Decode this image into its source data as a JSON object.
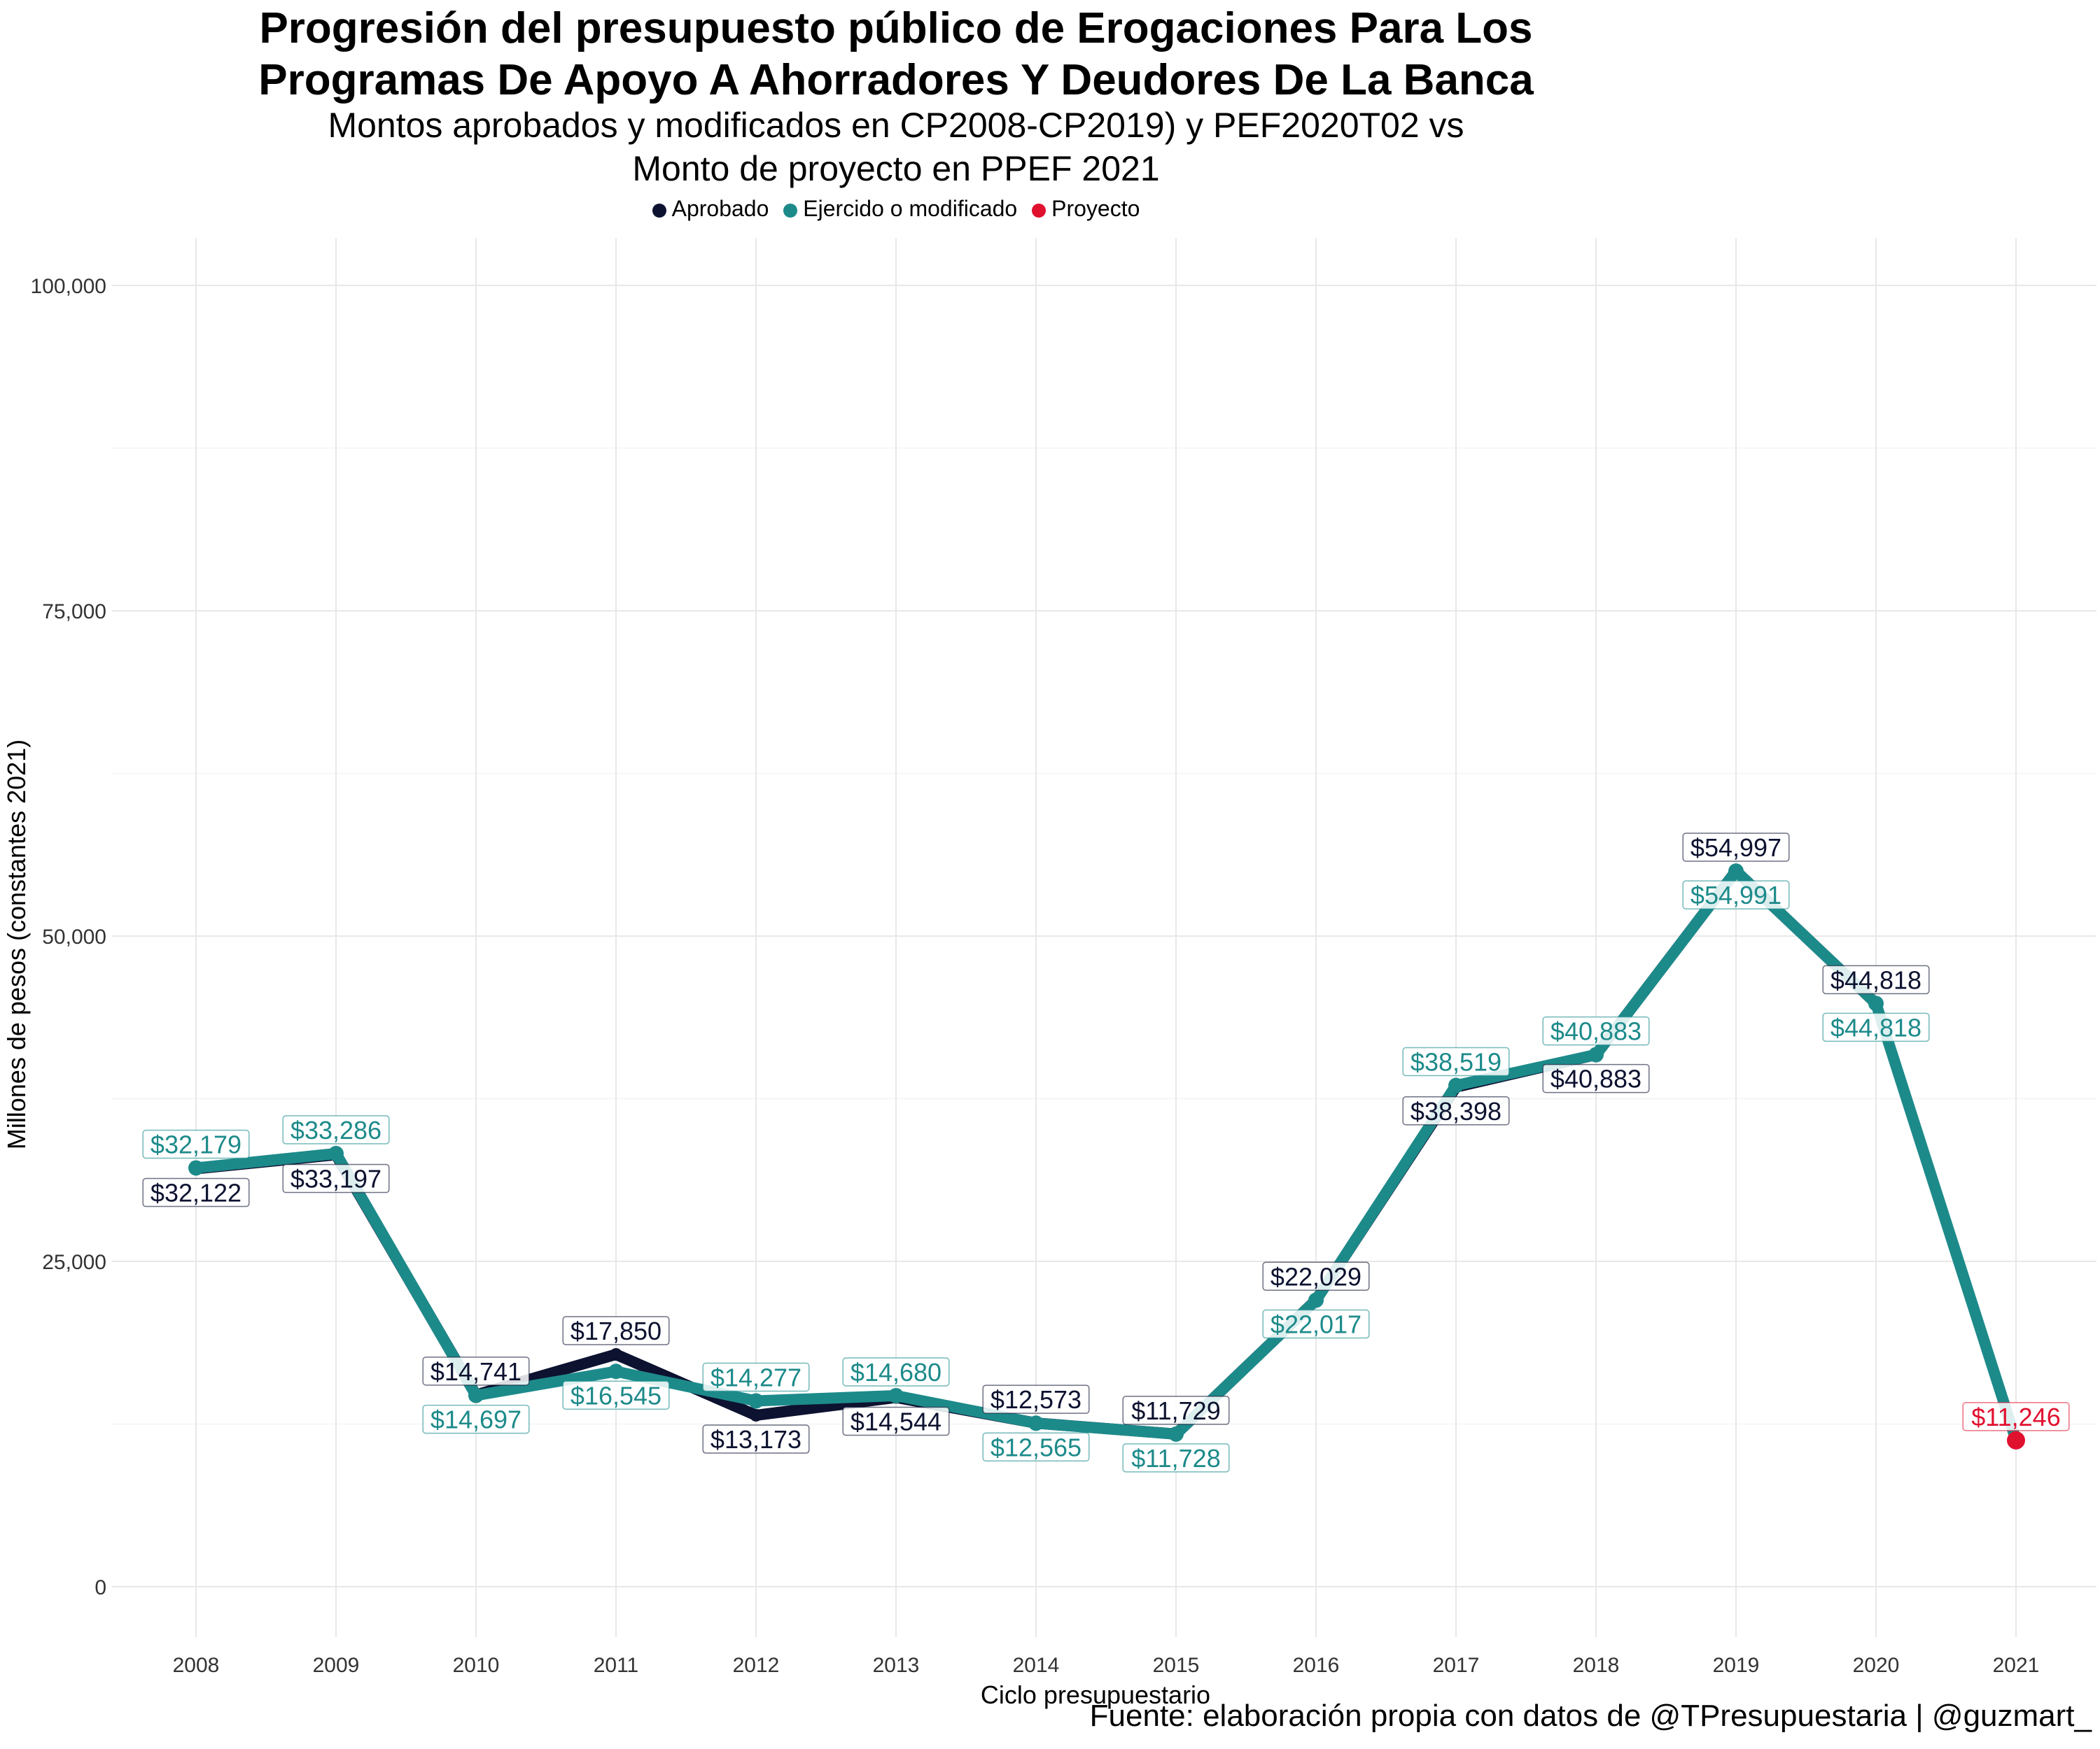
{
  "title_lines": [
    "Progresión del presupuesto público de Erogaciones Para Los",
    "Programas De Apoyo A Ahorradores Y Deudores De La Banca"
  ],
  "subtitle_lines": [
    "Montos aprobados y modificados en CP2008-CP2019) y PEF2020T02 vs",
    "Monto de proyecto en PPEF 2021"
  ],
  "caption": "Fuente: elaboración propia con datos de @TPresupuestaria | @guzmart_",
  "legend": [
    {
      "label": "Aprobado",
      "color": "#0d1230"
    },
    {
      "label": "Ejercido o modificado",
      "color": "#1d8a8a"
    },
    {
      "label": "Proyecto",
      "color": "#e0102f"
    }
  ],
  "chart_data": {
    "type": "line",
    "xlabel": "Ciclo presupuestario",
    "ylabel": "Millones de pesos (constantes 2021)",
    "x": [
      2008,
      2009,
      2010,
      2011,
      2012,
      2013,
      2014,
      2015,
      2016,
      2017,
      2018,
      2019,
      2020,
      2021
    ],
    "ylim": [
      0,
      100000
    ],
    "yticks": [
      0,
      25000,
      50000,
      75000,
      100000
    ],
    "ytick_labels": [
      "0",
      "25,000",
      "50,000",
      "75,000",
      "100,000"
    ],
    "grid": true,
    "series": [
      {
        "name": "Aprobado",
        "color": "#0d1230",
        "x": [
          2008,
          2009,
          2010,
          2011,
          2012,
          2013,
          2014,
          2015,
          2016,
          2017,
          2018,
          2019,
          2020
        ],
        "values": [
          32122,
          33197,
          14741,
          17850,
          13173,
          14544,
          12573,
          11729,
          22029,
          38398,
          40883,
          54997,
          44818
        ],
        "labels": [
          "$32,122",
          "$33,197",
          "$14,741",
          "$17,850",
          "$13,173",
          "$14,544",
          "$12,573",
          "$11,729",
          "$22,029",
          "$38,398",
          "$40,883",
          "$54,997",
          "$44,818"
        ]
      },
      {
        "name": "Ejercido o modificado",
        "color": "#1d8a8a",
        "x": [
          2008,
          2009,
          2010,
          2011,
          2012,
          2013,
          2014,
          2015,
          2016,
          2017,
          2018,
          2019,
          2020
        ],
        "values": [
          32179,
          33286,
          14697,
          16545,
          14277,
          14680,
          12565,
          11728,
          22017,
          38519,
          40883,
          54991,
          44818
        ],
        "labels": [
          "$32,179",
          "$33,286",
          "$14,697",
          "$16,545",
          "$14,277",
          "$14,680",
          "$12,565",
          "$11,728",
          "$22,017",
          "$38,519",
          "$40,883",
          "$54,991",
          "$44,818"
        ]
      },
      {
        "name": "Proyecto",
        "color": "#e0102f",
        "x": [
          2021
        ],
        "values": [
          11246
        ],
        "labels": [
          "$11,246"
        ]
      }
    ],
    "bridge": {
      "from_year": 2020,
      "from_value": 44818,
      "to_year": 2021,
      "to_value": 11246,
      "color": "#1d8a8a"
    }
  }
}
